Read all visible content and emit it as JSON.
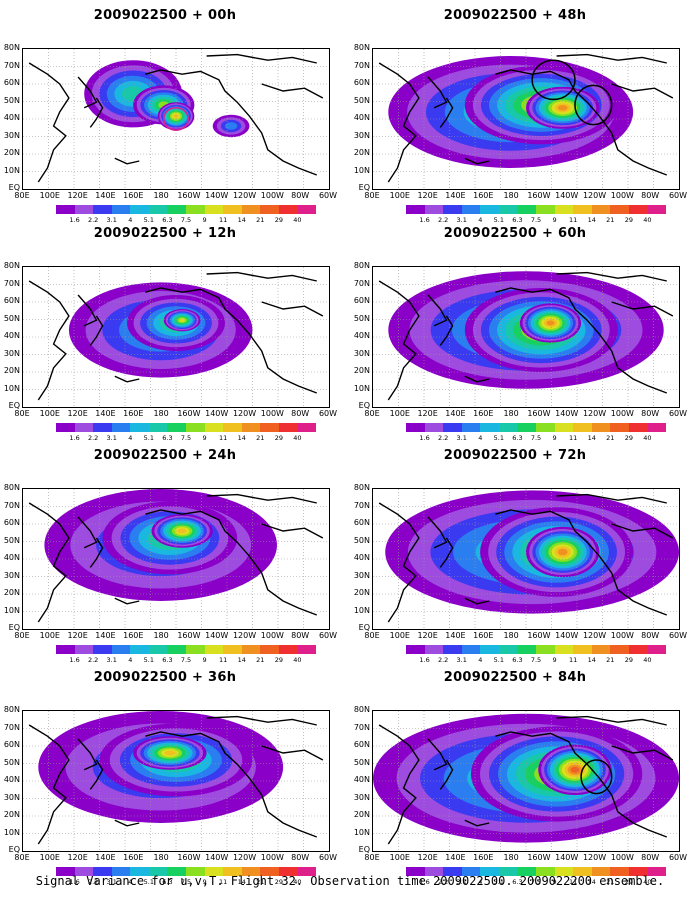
{
  "panels": [
    {
      "title": "2009022500 + 00h",
      "blobs": [
        [
          0.36,
          0.32,
          0.16,
          0.24,
          5
        ],
        [
          0.46,
          0.4,
          0.1,
          0.14,
          7
        ],
        [
          0.5,
          0.48,
          0.06,
          0.1,
          9
        ],
        [
          0.68,
          0.55,
          0.06,
          0.08,
          3
        ]
      ],
      "rings": [
        [
          0.5,
          0.5,
          0.04,
          0.08,
          "#e0208a"
        ]
      ]
    },
    {
      "title": "2009022500 + 48h",
      "blobs": [
        [
          0.45,
          0.45,
          0.4,
          0.4,
          5
        ],
        [
          0.55,
          0.4,
          0.25,
          0.28,
          8
        ],
        [
          0.62,
          0.42,
          0.12,
          0.15,
          10
        ]
      ],
      "rings": [
        [
          0.59,
          0.22,
          0.07,
          0.14,
          "#000"
        ],
        [
          0.72,
          0.4,
          0.06,
          0.14,
          "#000"
        ]
      ]
    },
    {
      "title": "2009022500 + 12h",
      "blobs": [
        [
          0.45,
          0.45,
          0.3,
          0.34,
          4
        ],
        [
          0.5,
          0.4,
          0.16,
          0.2,
          6
        ],
        [
          0.52,
          0.38,
          0.06,
          0.08,
          8
        ]
      ],
      "rings": []
    },
    {
      "title": "2009022500 + 60h",
      "blobs": [
        [
          0.5,
          0.45,
          0.45,
          0.42,
          5
        ],
        [
          0.55,
          0.45,
          0.25,
          0.3,
          8
        ],
        [
          0.58,
          0.4,
          0.1,
          0.14,
          10
        ]
      ],
      "rings": []
    },
    {
      "title": "2009022500 + 24h",
      "blobs": [
        [
          0.45,
          0.4,
          0.38,
          0.4,
          3
        ],
        [
          0.48,
          0.35,
          0.22,
          0.26,
          6
        ],
        [
          0.52,
          0.3,
          0.1,
          0.12,
          9
        ]
      ],
      "rings": []
    },
    {
      "title": "2009022500 + 72h",
      "blobs": [
        [
          0.52,
          0.45,
          0.48,
          0.44,
          5
        ],
        [
          0.6,
          0.45,
          0.25,
          0.32,
          8
        ],
        [
          0.62,
          0.45,
          0.12,
          0.18,
          10
        ]
      ],
      "rings": []
    },
    {
      "title": "2009022500 + 36h",
      "blobs": [
        [
          0.45,
          0.4,
          0.4,
          0.4,
          3
        ],
        [
          0.5,
          0.35,
          0.25,
          0.26,
          6
        ],
        [
          0.48,
          0.3,
          0.12,
          0.12,
          9
        ]
      ],
      "rings": []
    },
    {
      "title": "2009022500 + 84h",
      "blobs": [
        [
          0.5,
          0.48,
          0.5,
          0.46,
          5
        ],
        [
          0.6,
          0.45,
          0.28,
          0.34,
          8
        ],
        [
          0.66,
          0.42,
          0.12,
          0.18,
          11
        ]
      ],
      "rings": [
        [
          0.73,
          0.47,
          0.05,
          0.12,
          "#000"
        ]
      ]
    }
  ],
  "lat_labels": [
    "80N",
    "70N",
    "60N",
    "50N",
    "40N",
    "30N",
    "20N",
    "10N",
    "EQ"
  ],
  "lon_labels": [
    "80E",
    "100E",
    "120E",
    "140E",
    "160E",
    "180",
    "160W",
    "140W",
    "120W",
    "100W",
    "80W",
    "60W"
  ],
  "colorbar": {
    "colors": [
      "#8a00c8",
      "#9e4be0",
      "#3a3af0",
      "#2b7ef0",
      "#1ab8e0",
      "#18c8a8",
      "#18d060",
      "#8ae020",
      "#d8e020",
      "#f0c020",
      "#f09020",
      "#f06020",
      "#f03030",
      "#e0208a"
    ],
    "labels": [
      "1.6",
      "2.2",
      "3.1",
      "4",
      "5.1",
      "6.3",
      "7.5",
      "9",
      "11",
      "14",
      "21",
      "29",
      "40"
    ]
  },
  "caption": "Signal Variance for u,v,T. Flight 32. Observation time 2009022500. 2009022200 ensemble."
}
